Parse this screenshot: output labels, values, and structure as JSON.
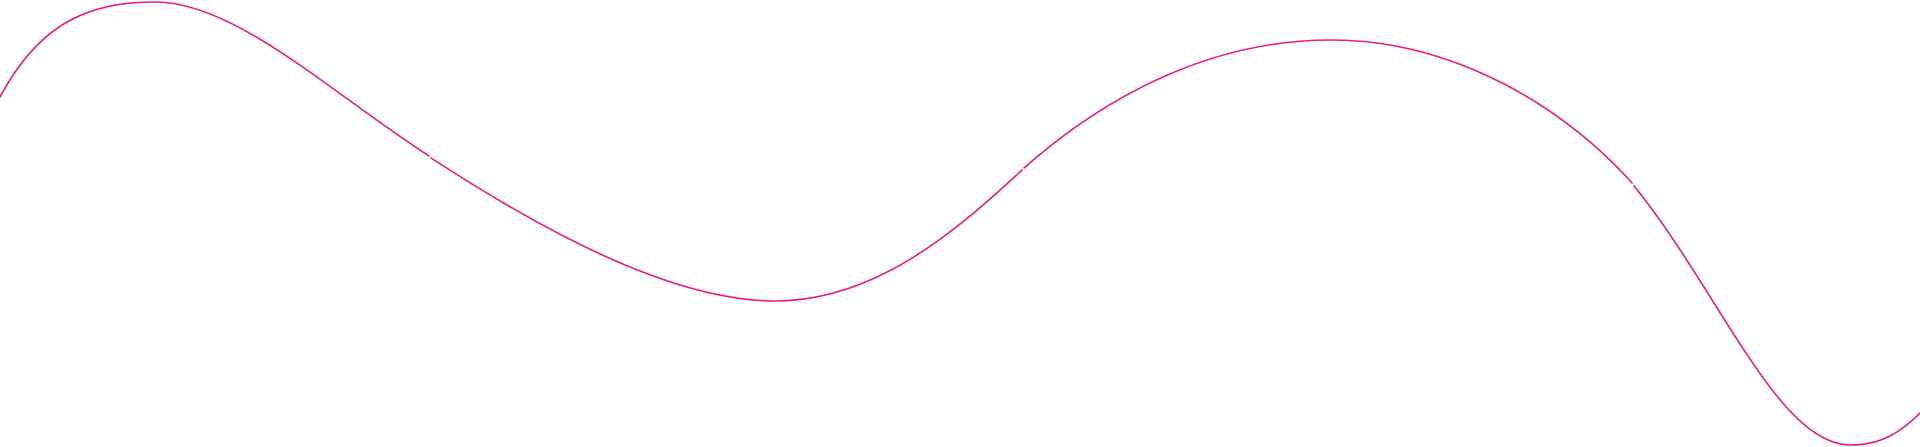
{
  "decoration": {
    "type": "wavy-line",
    "stroke_color": "#e91e7a",
    "background_color": "#ffffff",
    "segments": 4
  }
}
